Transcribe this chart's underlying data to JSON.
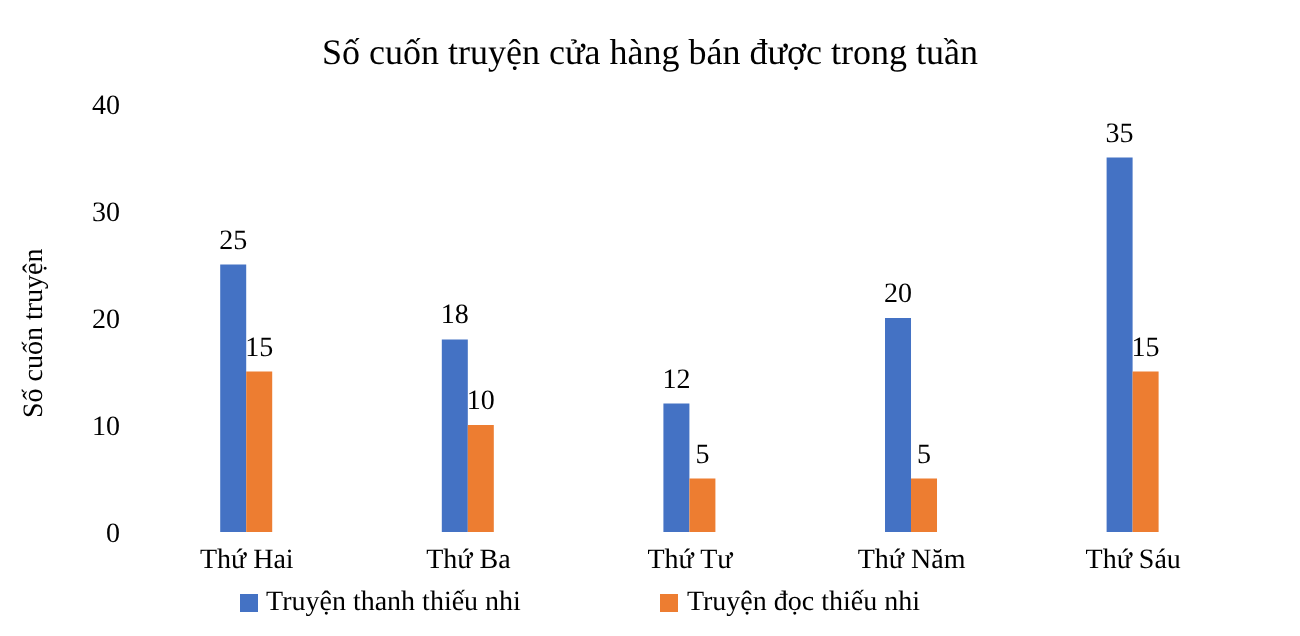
{
  "chart_data": {
    "type": "bar",
    "title": "Số cuốn truyện cửa hàng bán được trong tuần",
    "ylabel": "Số cuốn truyện",
    "categories": [
      "Thứ Hai",
      "Thứ Ba",
      "Thứ Tư",
      "Thứ Năm",
      "Thứ Sáu"
    ],
    "series": [
      {
        "name": "Truyện thanh thiếu nhi",
        "color": "#4472c4",
        "values": [
          25,
          18,
          12,
          20,
          35
        ]
      },
      {
        "name": "Truyện đọc thiếu nhi",
        "color": "#ed7d31",
        "values": [
          15,
          10,
          5,
          5,
          15
        ]
      }
    ],
    "ylim": [
      0,
      40
    ],
    "yticks": [
      0,
      10,
      20,
      30,
      40
    ],
    "data_labels": true,
    "legend": "bottom"
  }
}
